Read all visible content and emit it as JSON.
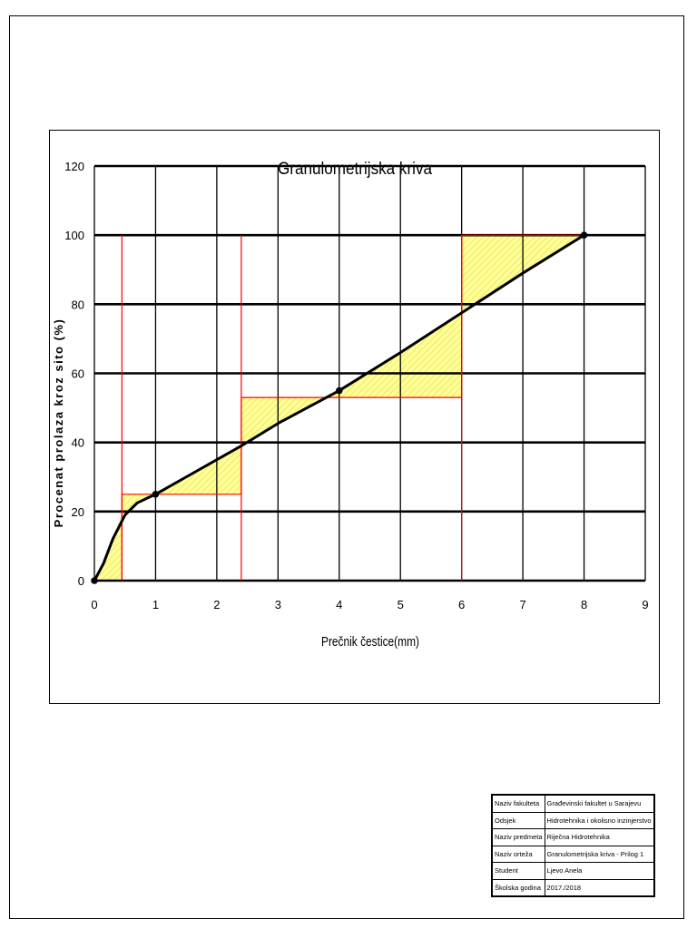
{
  "chart_data": {
    "type": "line",
    "title": "Granulometrijska kriva",
    "xlabel": "Prečnik čestice(mm)",
    "ylabel": "Procenat prolaza kroz sito (%)",
    "xlim": [
      0,
      9
    ],
    "ylim": [
      0,
      120
    ],
    "xticks": [
      "0",
      "1",
      "2",
      "3",
      "4",
      "5",
      "6",
      "7",
      "8",
      "9"
    ],
    "yticks": [
      "0",
      "20",
      "40",
      "60",
      "80",
      "100",
      "120"
    ],
    "grid": true,
    "series": [
      {
        "markers": [
          [
            0,
            0
          ],
          [
            1,
            25
          ],
          [
            4,
            55
          ],
          [
            8,
            100
          ]
        ],
        "values": [
          [
            0,
            0
          ],
          [
            0.15,
            5
          ],
          [
            0.3,
            12
          ],
          [
            0.5,
            19
          ],
          [
            0.7,
            22.5
          ],
          [
            1,
            25
          ],
          [
            1.5,
            30
          ],
          [
            2,
            35
          ],
          [
            2.4,
            39
          ],
          [
            3,
            45.5
          ],
          [
            4,
            55
          ],
          [
            5,
            66
          ],
          [
            6,
            77.5
          ],
          [
            7,
            89
          ],
          [
            8,
            100
          ]
        ]
      }
    ],
    "step_line": {
      "color": "#ff0000",
      "points": [
        [
          0.45,
          0
        ],
        [
          0.45,
          25
        ],
        [
          2.4,
          25
        ],
        [
          2.4,
          53
        ],
        [
          6,
          53
        ],
        [
          6,
          100
        ],
        [
          8,
          100
        ]
      ],
      "verticals_to_zero": [
        0.45,
        2.4,
        6
      ]
    },
    "hatched_regions": [
      [
        [
          0,
          0
        ],
        [
          0.45,
          0
        ],
        [
          0.45,
          19.5
        ],
        [
          0.3,
          12
        ],
        [
          0.15,
          5
        ]
      ],
      [
        [
          0.45,
          19.5
        ],
        [
          0.45,
          25
        ],
        [
          1,
          25
        ],
        [
          0.7,
          22.5
        ],
        [
          0.5,
          19
        ]
      ],
      [
        [
          1,
          25
        ],
        [
          2.4,
          25
        ],
        [
          2.4,
          39
        ],
        [
          2,
          35
        ],
        [
          1.5,
          30
        ]
      ],
      [
        [
          2.4,
          39
        ],
        [
          2.4,
          53
        ],
        [
          3.72,
          53
        ],
        [
          3,
          45.5
        ]
      ],
      [
        [
          3.72,
          53
        ],
        [
          6,
          53
        ],
        [
          6,
          77.5
        ],
        [
          5,
          66
        ],
        [
          4,
          55
        ]
      ],
      [
        [
          6,
          77.5
        ],
        [
          6,
          100
        ],
        [
          8,
          100
        ],
        [
          7,
          89
        ]
      ]
    ],
    "colors": {
      "curve": "#000000",
      "fill": "#ffff99",
      "hatch": "#e8d840",
      "step": "#ff0000"
    }
  },
  "title_block": {
    "rows": [
      {
        "label": "Naziv fakulteta",
        "value": "Građevinski fakultet u Sarajevu"
      },
      {
        "label": "Odsjek",
        "value": "Hidrotehnika i okolisno inzinjerstvo"
      },
      {
        "label": "Naziv predmeta",
        "value": "Riječna Hidrotehnika"
      },
      {
        "label": "Naziv orteža",
        "value": "Granulometrijska kriva - Prilog 1"
      },
      {
        "label": "Student",
        "value": "Ljevo Anela"
      },
      {
        "label": "Školska godina",
        "value": "2017./2018"
      }
    ]
  }
}
